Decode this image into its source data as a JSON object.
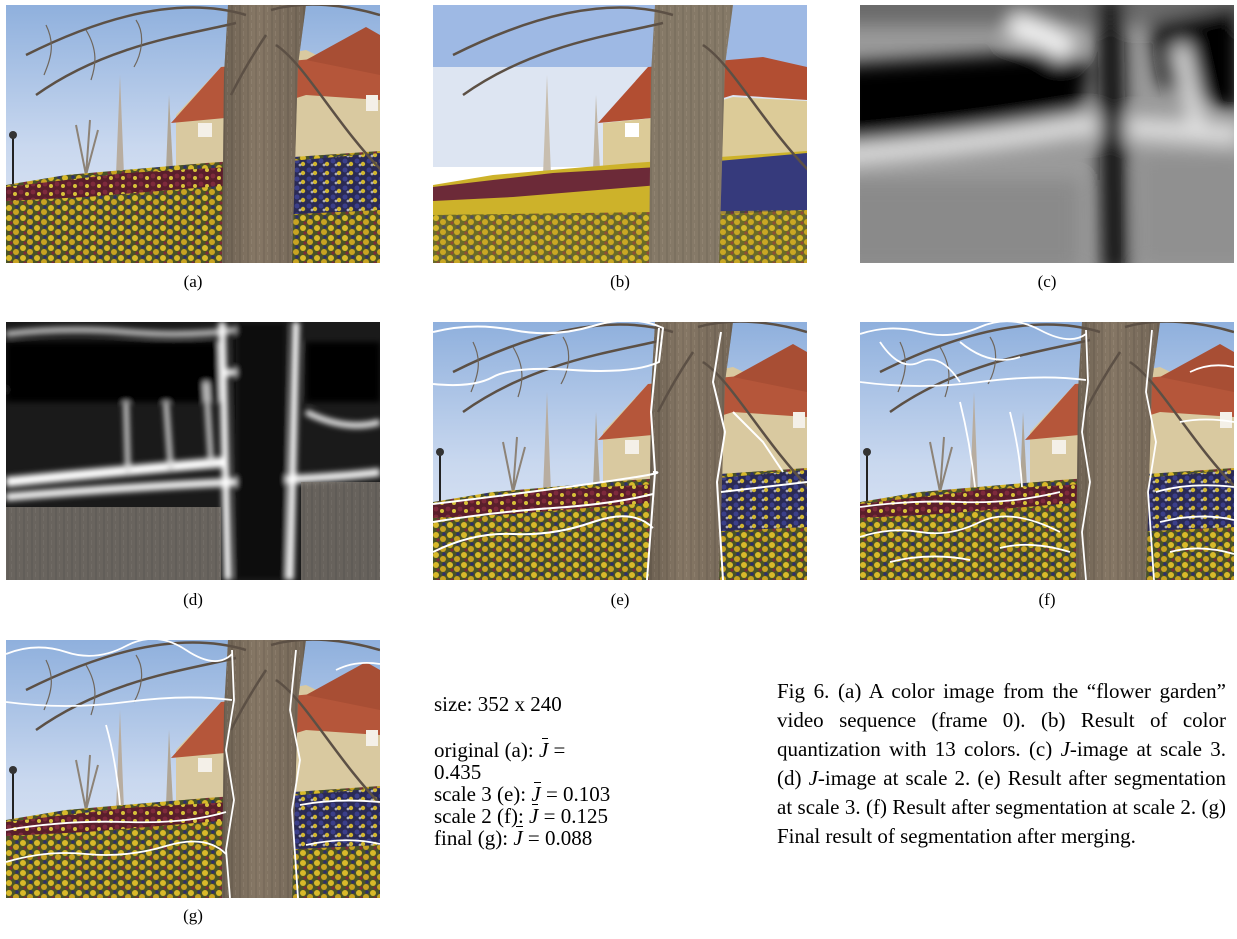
{
  "panels": [
    {
      "id": "a",
      "label": "(a)",
      "type": "original"
    },
    {
      "id": "b",
      "label": "(b)",
      "type": "quantized"
    },
    {
      "id": "c",
      "label": "(c)",
      "type": "j-image-scale3"
    },
    {
      "id": "d",
      "label": "(d)",
      "type": "j-image-scale2"
    },
    {
      "id": "e",
      "label": "(e)",
      "type": "segmented-scale3"
    },
    {
      "id": "f",
      "label": "(f)",
      "type": "segmented-scale2"
    },
    {
      "id": "g",
      "label": "(g)",
      "type": "segmented-final"
    }
  ],
  "stats": {
    "size": "size: 352 x 240",
    "original_prefix": "original (a): ",
    "original_eq": " =",
    "original_value": "0.435",
    "scale3_prefix": "scale 3 (e): ",
    "scale3_rest": " = 0.103",
    "scale2_prefix": "scale 2 (f): ",
    "scale2_rest": " = 0.125",
    "final_prefix": "final (g): ",
    "final_rest": " = 0.088",
    "j_symbol": "J"
  },
  "caption": {
    "p1": "Fig 6. (a) A color image from the “flower garden” video sequence (frame 0). (b) Result of color quantization with 13 colors. (c) ",
    "j1": "J",
    "p2": "-image at scale 3. (d) ",
    "j2": "J",
    "p3": "-image at scale 2. (e) Result after segmentation at scale 3. (f) Result after segmentation at scale 2. (g) Final result of segmentation after merging."
  },
  "colors": {
    "sky": "#c9d8ef",
    "sky_top": "#8fb0dd",
    "roof": "#b5563a",
    "trunk": "#7d6f5e",
    "flower_yellow": "#c9aa22",
    "flower_purple": "#3a3470",
    "flower_red": "#6a2433",
    "grass": "#4d5a2a",
    "segment_line": "#ffffff"
  }
}
